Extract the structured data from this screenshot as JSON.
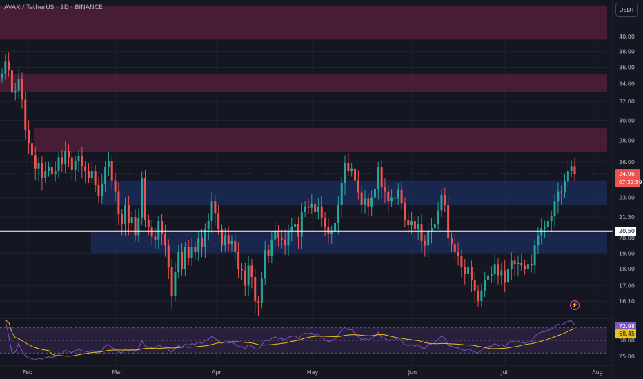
{
  "header": {
    "title": "AVAX / TetherUS · 1D · BINANCE",
    "currency_button": "USDT"
  },
  "colors": {
    "background": "#141722",
    "up": "#26a69a",
    "down": "#ef5350",
    "resistance_zone": "#5c1f3d",
    "support_zone": "#1c2c5e",
    "rsi_line": "#7e57c2",
    "rsi_ma": "#e8c21c",
    "white_line": "#ffffff"
  },
  "chart_data": {
    "type": "candlestick",
    "price_axis": {
      "ticks": [
        "40.00",
        "38.00",
        "36.00",
        "34.00",
        "32.00",
        "30.00",
        "28.00",
        "26.00",
        "23.00",
        "21.50",
        "20.00",
        "19.00",
        "18.00",
        "17.00",
        "16.10"
      ],
      "scale": "log"
    },
    "time_axis": {
      "labels": [
        "Feb",
        "Mar",
        "Apr",
        "May",
        "Jun",
        "Jul",
        "Aug"
      ]
    },
    "price_labels": [
      {
        "value": "24.96",
        "sub": "07:32:59",
        "kind": "last_price"
      },
      {
        "value": "20.50",
        "kind": "horizontal_line"
      }
    ],
    "zones": [
      {
        "kind": "resistance",
        "from": 39.6,
        "to": 44.5
      },
      {
        "kind": "resistance",
        "from": 33.1,
        "to": 35.2
      },
      {
        "kind": "resistance",
        "from": 26.9,
        "to": 29.2
      },
      {
        "kind": "support",
        "from": 22.4,
        "to": 24.4
      },
      {
        "kind": "support",
        "from": 19.0,
        "to": 20.4
      }
    ],
    "horizontal_line": 20.5,
    "last_price": 24.96,
    "candles_close": [
      35.2,
      36.7,
      35.6,
      33.0,
      33.2,
      34.6,
      32.2,
      29.0,
      27.7,
      26.6,
      25.4,
      25.9,
      24.6,
      25.2,
      25.5,
      24.9,
      25.2,
      26.4,
      25.8,
      27.0,
      26.4,
      25.3,
      26.1,
      26.5,
      25.6,
      25.2,
      24.6,
      25.2,
      24.0,
      23.1,
      24.1,
      25.5,
      26.1,
      24.4,
      23.5,
      21.7,
      21.0,
      22.4,
      21.1,
      21.5,
      20.2,
      21.4,
      24.6,
      21.3,
      20.8,
      20.1,
      19.9,
      21.2,
      20.3,
      19.5,
      18.1,
      16.4,
      17.8,
      19.1,
      18.0,
      19.4,
      18.7,
      19.4,
      19.1,
      20.0,
      19.4,
      20.6,
      21.2,
      22.7,
      21.8,
      20.6,
      19.5,
      20.2,
      19.6,
      19.8,
      19.1,
      18.0,
      17.9,
      17.0,
      18.2,
      17.5,
      16.1,
      16.0,
      17.4,
      19.2,
      18.8,
      19.9,
      20.5,
      20.0,
      19.9,
      19.5,
      20.5,
      20.8,
      21.0,
      20.1,
      21.9,
      22.3,
      22.2,
      22.5,
      21.9,
      22.3,
      21.4,
      20.8,
      20.3,
      20.5,
      21.1,
      22.4,
      24.2,
      25.9,
      25.2,
      25.4,
      24.4,
      23.4,
      22.4,
      22.9,
      22.3,
      23.0,
      23.7,
      25.5,
      23.8,
      23.5,
      22.7,
      23.0,
      22.9,
      23.6,
      22.6,
      21.3,
      20.9,
      21.2,
      20.6,
      21.0,
      19.8,
      19.5,
      20.5,
      20.7,
      21.0,
      22.0,
      23.2,
      22.4,
      20.0,
      19.6,
      19.1,
      18.8,
      18.1,
      17.7,
      18.1,
      17.3,
      16.7,
      16.1,
      16.7,
      17.3,
      17.6,
      17.7,
      18.3,
      17.6,
      17.9,
      17.2,
      18.0,
      18.5,
      18.3,
      18.4,
      18.2,
      18.0,
      18.3,
      18.2,
      19.5,
      20.2,
      20.7,
      20.8,
      21.2,
      21.6,
      22.7,
      23.5,
      23.4,
      24.3,
      25.2,
      25.6,
      24.96
    ],
    "rsi": {
      "axis_ticks": [
        "50.00",
        "25.00"
      ],
      "value_label": "72.98",
      "ma_label": "68.45"
    }
  }
}
